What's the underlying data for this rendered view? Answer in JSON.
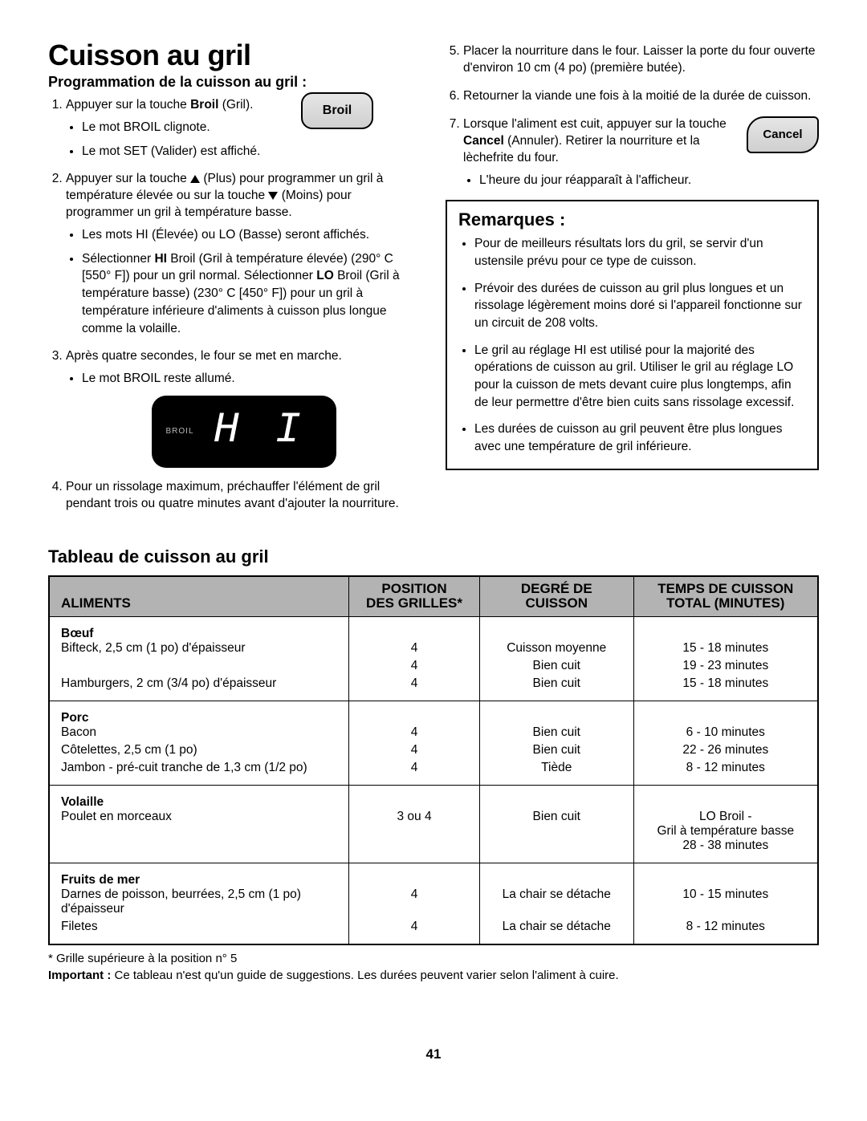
{
  "page_number": "41",
  "title": "Cuisson au gril",
  "left": {
    "subheading": "Programmation de la cuisson au gril :",
    "broil_button_label": "Broil",
    "step1": {
      "pre": "Appuyer sur la touche ",
      "bold": "Broil",
      "post": " (Gril)."
    },
    "step1_b1": "Le mot BROIL clignote.",
    "step1_b2": "Le mot SET (Valider) est affiché.",
    "step2": "Appuyer sur la touche ▲ (Plus) pour programmer un gril à température élevée ou sur la touche ▼ (Moins) pour programmer un gril à température basse.",
    "step2_b1": "Les mots HI (Élevée) ou LO (Basse) seront affichés.",
    "step2_b2_pre": "Sélectionner ",
    "step2_b2_hi": "HI",
    "step2_b2_mid": " Broil (Gril à température élevée) (290° C [550° F]) pour un gril normal. Sélectionner ",
    "step2_b2_lo": "LO",
    "step2_b2_post": " Broil (Gril à température basse) (230° C [450° F]) pour un gril à température inférieure d'aliments à cuisson plus longue comme la volaille.",
    "step3": "Après quatre secondes, le four se met en marche.",
    "step3_b1": "Le mot BROIL reste allumé.",
    "display_label": "BROIL",
    "display_value": "H I",
    "step4": "Pour un rissolage maximum, préchauffer l'élément de gril pendant trois ou quatre minutes avant d'ajouter la nourriture."
  },
  "right": {
    "step5": "Placer la nourriture dans le four. Laisser la porte du four ouverte d'environ 10 cm (4 po) (première butée).",
    "step6": "Retourner la viande une fois à la moitié de la durée de cuisson.",
    "cancel_button_label": "Cancel",
    "step7_pre": "Lorsque l'aliment est cuit, appuyer sur la touche ",
    "step7_bold": "Cancel",
    "step7_post": " (Annuler). Retirer la nourriture et la lèchefrite du four.",
    "step7_b1": "L'heure du jour réapparaît à l'afficheur.",
    "remarks_title": "Remarques :",
    "remarks": [
      "Pour de meilleurs résultats lors du gril, se servir d'un ustensile prévu pour ce type de cuisson.",
      "Prévoir des durées de cuisson au gril plus longues et un rissolage légèrement moins doré si l'appareil fonctionne sur un circuit de 208 volts.",
      "Le gril au réglage HI est utilisé pour la majorité des opérations de cuisson au gril. Utiliser le gril au réglage LO pour la cuisson de mets devant cuire plus longtemps, afin de leur permettre d'être bien cuits sans rissolage excessif.",
      "Les durées de cuisson au gril peuvent être plus longues avec une température de gril inférieure."
    ]
  },
  "table": {
    "title": "Tableau de cuisson au gril",
    "headers": {
      "food": "ALIMENTS",
      "rack_l1": "POSITION",
      "rack_l2": "DES GRILLES*",
      "done_l1": "DEGRÉ DE",
      "done_l2": "CUISSON",
      "time_l1": "TEMPS DE CUISSON",
      "time_l2": "TOTAL (MINUTES)"
    },
    "sections": [
      {
        "category": "Bœuf",
        "rows": [
          {
            "food": "Bifteck, 2,5 cm (1 po) d'épaisseur",
            "rack": "4",
            "done": "Cuisson moyenne",
            "time": "15 - 18 minutes"
          },
          {
            "food": "",
            "rack": "4",
            "done": "Bien cuit",
            "time": "19 - 23 minutes"
          },
          {
            "food": "Hamburgers, 2 cm (3/4 po) d'épaisseur",
            "rack": "4",
            "done": "Bien cuit",
            "time": "15 - 18 minutes"
          }
        ]
      },
      {
        "category": "Porc",
        "rows": [
          {
            "food": "Bacon",
            "rack": "4",
            "done": "Bien cuit",
            "time": "6 - 10 minutes"
          },
          {
            "food": "Côtelettes, 2,5 cm (1 po)",
            "rack": "4",
            "done": "Bien cuit",
            "time": "22 - 26 minutes"
          },
          {
            "food": "Jambon - pré-cuit tranche de 1,3 cm (1/2 po)",
            "rack": "4",
            "done": "Tiède",
            "time": "8 - 12 minutes"
          }
        ]
      },
      {
        "category": "Volaille",
        "rows": [
          {
            "food": "Poulet en morceaux",
            "rack": "3 ou 4",
            "done": "Bien cuit",
            "time": "LO Broil -\nGril à température basse\n28 - 38 minutes"
          }
        ]
      },
      {
        "category": "Fruits de mer",
        "rows": [
          {
            "food": "Darnes de poisson, beurrées, 2,5 cm (1 po) d'épaisseur",
            "rack": "4",
            "done": "La chair se détache",
            "time": "10 - 15 minutes"
          },
          {
            "food": "Filetes",
            "rack": "4",
            "done": "La chair se détache",
            "time": "8 - 12 minutes"
          }
        ]
      }
    ],
    "footnote": "* Grille supérieure à la position n° 5",
    "important_label": "Important :",
    "important_text": " Ce tableau n'est qu'un guide de suggestions. Les durées peuvent varier selon l'aliment à cuire."
  }
}
